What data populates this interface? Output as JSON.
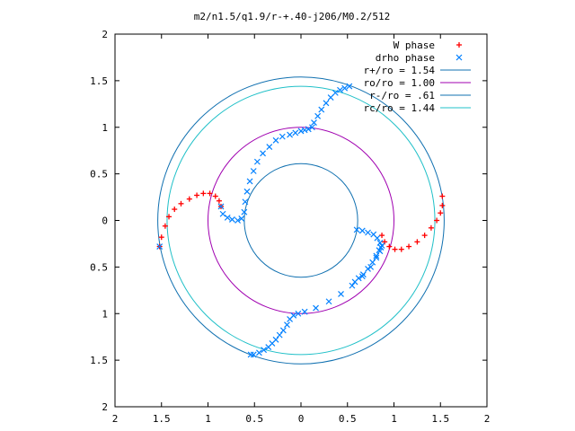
{
  "chart_data": {
    "type": "scatter",
    "title": "m2/n1.5/q1.9/r-+.40-j206/M0.2/512",
    "xlim": [
      -2,
      2
    ],
    "ylim": [
      -2,
      2
    ],
    "x_ticks": [
      -2,
      -1.5,
      -1,
      -0.5,
      0,
      0.5,
      1,
      1.5,
      2
    ],
    "y_ticks": [
      -2,
      -1.5,
      -1,
      -0.5,
      0,
      0.5,
      1,
      1.5,
      2
    ],
    "x_tick_labels": [
      "2",
      "1.5",
      "1",
      "0.5",
      "0",
      "0.5",
      "1",
      "1.5",
      "2"
    ],
    "y_tick_labels": [
      "2",
      "1.5",
      "1",
      "0.5",
      "0",
      "0.5",
      "1",
      "1.5",
      "2"
    ],
    "grid": false,
    "legend_position": "top-right",
    "series": [
      {
        "name": "W phase",
        "kind": "points",
        "marker": "plus",
        "color": "#ff0000",
        "x": [
          -1.52,
          -1.5,
          -1.46,
          -1.42,
          -1.36,
          -1.29,
          -1.2,
          -1.12,
          -1.05,
          -0.98,
          -0.92,
          -0.88,
          -0.86,
          0.87,
          0.9,
          0.95,
          1.01,
          1.08,
          1.16,
          1.25,
          1.33,
          1.4,
          1.46,
          1.5,
          1.52,
          1.52
        ],
        "y": [
          -0.28,
          -0.18,
          -0.06,
          0.04,
          0.12,
          0.18,
          0.23,
          0.27,
          0.29,
          0.29,
          0.26,
          0.21,
          0.15,
          -0.16,
          -0.23,
          -0.28,
          -0.31,
          -0.31,
          -0.28,
          -0.23,
          -0.16,
          -0.08,
          0.0,
          0.08,
          0.16,
          0.26
        ]
      },
      {
        "name": "drho phase",
        "kind": "points",
        "marker": "cross",
        "color": "#0080ff",
        "x": [
          -1.52,
          -0.86,
          -0.84,
          -0.79,
          -0.74,
          -0.68,
          -0.64,
          -0.61,
          -0.6,
          -0.58,
          -0.55,
          -0.51,
          -0.47,
          -0.41,
          -0.34,
          -0.27,
          -0.2,
          -0.12,
          -0.06,
          0.0,
          0.04,
          0.08,
          0.12,
          0.14,
          0.18,
          0.22,
          0.27,
          0.32,
          0.37,
          0.42,
          0.47,
          0.52,
          0.6,
          0.66,
          0.72,
          0.78,
          0.82,
          0.85,
          0.87,
          0.58,
          0.62,
          0.67,
          0.72,
          0.77,
          0.81,
          0.84,
          0.86,
          0.85,
          0.81,
          0.75,
          0.66,
          0.55,
          0.43,
          0.3,
          0.16,
          0.04,
          -0.03,
          -0.08,
          -0.12,
          -0.15,
          -0.19,
          -0.23,
          -0.27,
          -0.31,
          -0.35,
          -0.4,
          -0.45,
          -0.51,
          -0.54
        ],
        "y": [
          -0.28,
          0.15,
          0.07,
          0.03,
          0.01,
          0.0,
          0.02,
          0.09,
          0.2,
          0.31,
          0.42,
          0.53,
          0.63,
          0.72,
          0.79,
          0.86,
          0.9,
          0.92,
          0.94,
          0.96,
          0.97,
          0.98,
          1.0,
          1.05,
          1.12,
          1.19,
          1.26,
          1.32,
          1.37,
          1.4,
          1.42,
          1.44,
          -0.1,
          -0.11,
          -0.13,
          -0.15,
          -0.19,
          -0.24,
          -0.27,
          -0.66,
          -0.62,
          -0.58,
          -0.52,
          -0.45,
          -0.38,
          -0.32,
          -0.29,
          -0.33,
          -0.4,
          -0.5,
          -0.6,
          -0.7,
          -0.79,
          -0.87,
          -0.94,
          -0.98,
          -1.0,
          -1.02,
          -1.06,
          -1.12,
          -1.18,
          -1.23,
          -1.28,
          -1.32,
          -1.36,
          -1.39,
          -1.42,
          -1.44,
          -1.44
        ]
      },
      {
        "name": "r+/ro = 1.54",
        "kind": "circle",
        "radius": 1.54,
        "color": "#1070b0"
      },
      {
        "name": "ro/ro = 1.00",
        "kind": "circle",
        "radius": 1.0,
        "color": "#a000b0"
      },
      {
        "name": "r-/ro = .61",
        "kind": "circle",
        "radius": 0.61,
        "color": "#1070b0"
      },
      {
        "name": "rc/ro = 1.44",
        "kind": "circle",
        "radius": 1.44,
        "color": "#20c0c8"
      }
    ]
  }
}
